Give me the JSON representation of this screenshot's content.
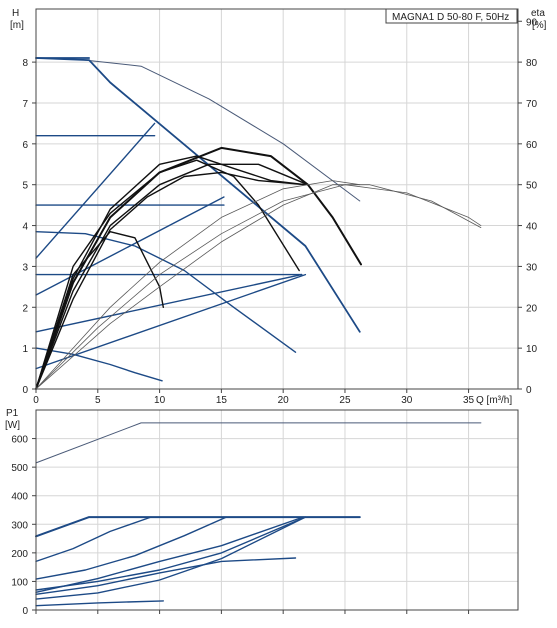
{
  "chart_data": [
    {
      "type": "line",
      "title": "MAGNA1 D 50-80 F, 50Hz",
      "ylabel": "H",
      "yunit": "[m]",
      "y2label": "eta",
      "y2unit": "[%]",
      "xlabel": "Q [m³/h]",
      "xlim": [
        0,
        39
      ],
      "ylim": [
        0,
        9.3
      ],
      "y2lim": [
        0,
        93
      ],
      "xticks": [
        "0",
        "5",
        "10",
        "15",
        "20",
        "25",
        "30",
        "35"
      ],
      "yticks": [
        "0",
        "1",
        "2",
        "3",
        "4",
        "5",
        "6",
        "7",
        "8"
      ],
      "y2ticks": [
        "0",
        "10",
        "20",
        "30",
        "40",
        "50",
        "60",
        "70",
        "80",
        "90"
      ],
      "grid": true,
      "series": [
        {
          "axis": "H",
          "role": "curve-max",
          "x": [
            0,
            2,
            4,
            8.5,
            14,
            20,
            26.2
          ],
          "y": [
            8.1,
            8.1,
            8.05,
            7.9,
            7.1,
            6.0,
            4.6
          ]
        },
        {
          "axis": "H",
          "role": "proportional",
          "x": [
            0,
            4.3,
            6,
            21.8,
            26.2
          ],
          "y": [
            8.1,
            8.05,
            7.5,
            3.5,
            1.4
          ]
        },
        {
          "axis": "H",
          "role": "constant-8",
          "x": [
            0,
            4.3
          ],
          "y": [
            8.1,
            8.1
          ]
        },
        {
          "axis": "H",
          "role": "constant-6.2",
          "x": [
            0,
            9.6
          ],
          "y": [
            6.2,
            6.2
          ]
        },
        {
          "axis": "H",
          "role": "constant-4.5",
          "x": [
            0,
            15.2
          ],
          "y": [
            4.5,
            4.5
          ]
        },
        {
          "axis": "H",
          "role": "constant-2.8",
          "x": [
            0,
            21.5
          ],
          "y": [
            2.8,
            2.8
          ]
        },
        {
          "axis": "H",
          "role": "prop-low",
          "x": [
            0,
            9.6
          ],
          "y": [
            3.2,
            6.5
          ]
        },
        {
          "axis": "H",
          "role": "prop-low",
          "x": [
            0,
            15.2
          ],
          "y": [
            2.3,
            4.7
          ]
        },
        {
          "axis": "H",
          "role": "prop-low",
          "x": [
            0,
            21.5
          ],
          "y": [
            1.4,
            2.8
          ]
        },
        {
          "axis": "H",
          "role": "prop-low",
          "x": [
            0,
            21.8
          ],
          "y": [
            0.5,
            2.8
          ]
        },
        {
          "axis": "H",
          "role": "min-curve",
          "x": [
            0,
            4,
            8,
            12,
            16,
            21
          ],
          "y": [
            3.85,
            3.8,
            3.5,
            2.9,
            2.0,
            0.9
          ]
        },
        {
          "axis": "H",
          "role": "min-curve",
          "x": [
            0,
            3,
            6,
            8,
            10.2
          ],
          "y": [
            1.0,
            0.85,
            0.6,
            0.4,
            0.2
          ]
        },
        {
          "axis": "H",
          "role": "auto",
          "x": [
            0,
            3,
            6,
            8,
            10,
            10.3
          ],
          "y": [
            0,
            2.8,
            3.85,
            3.7,
            2.5,
            2.0
          ]
        },
        {
          "axis": "H",
          "role": "auto",
          "x": [
            0,
            3,
            6,
            10,
            13,
            16,
            18,
            21.3
          ],
          "y": [
            0,
            3.0,
            4.3,
            5.3,
            5.6,
            5.2,
            4.5,
            2.9
          ]
        },
        {
          "axis": "H",
          "role": "auto",
          "x": [
            0,
            3,
            6,
            10,
            13,
            16,
            19,
            21.8
          ],
          "y": [
            0,
            2.7,
            4.4,
            5.5,
            5.7,
            5.4,
            5.1,
            5.0
          ]
        },
        {
          "axis": "H",
          "role": "auto",
          "x": [
            0,
            3,
            6,
            9,
            12,
            15,
            18,
            21.8
          ],
          "y": [
            0,
            2.2,
            3.9,
            4.7,
            5.2,
            5.3,
            5.1,
            5.0
          ]
        },
        {
          "axis": "H",
          "role": "auto",
          "x": [
            0,
            3,
            6,
            10,
            14,
            18,
            22
          ],
          "y": [
            0,
            2.4,
            4.0,
            5.0,
            5.5,
            5.5,
            5.0
          ]
        },
        {
          "axis": "H",
          "role": "auto",
          "x": [
            0,
            3,
            6,
            10,
            15,
            19,
            22,
            24,
            26.3
          ],
          "y": [
            0,
            2.6,
            4.2,
            5.3,
            5.9,
            5.7,
            5.0,
            4.2,
            3.05
          ]
        },
        {
          "axis": "eta",
          "role": "efficiency",
          "x": [
            0,
            3,
            6,
            10,
            15,
            20,
            24,
            26.2
          ],
          "y": [
            0,
            10,
            20,
            31,
            42,
            49,
            51,
            50
          ]
        },
        {
          "axis": "eta",
          "role": "efficiency",
          "x": [
            0,
            6,
            10,
            15,
            20,
            24,
            27,
            32,
            36
          ],
          "y": [
            0,
            16,
            25,
            36,
            45,
            50,
            50,
            46,
            39.5
          ]
        },
        {
          "axis": "eta",
          "role": "efficiency",
          "x": [
            0,
            5,
            10,
            15,
            20,
            25,
            30,
            35,
            36
          ],
          "y": [
            0,
            15,
            28,
            38,
            46,
            50,
            48,
            42,
            40
          ]
        }
      ]
    },
    {
      "type": "line",
      "ylabel": "P1",
      "yunit": "[W]",
      "xlim": [
        0,
        39
      ],
      "ylim": [
        0,
        700
      ],
      "yticks": [
        "0",
        "100",
        "200",
        "300",
        "400",
        "500",
        "600"
      ],
      "grid": true,
      "series": [
        {
          "role": "max",
          "x": [
            0,
            8.5,
            36
          ],
          "y": [
            515,
            655,
            655
          ]
        },
        {
          "role": "limit",
          "x": [
            0,
            4.3,
            26.2
          ],
          "y": [
            258,
            325,
            325
          ]
        },
        {
          "role": "curve",
          "x": [
            0,
            3,
            6,
            9.3
          ],
          "y": [
            170,
            215,
            275,
            325
          ]
        },
        {
          "role": "curve",
          "x": [
            0,
            4,
            8,
            12,
            15.4
          ],
          "y": [
            108,
            140,
            190,
            260,
            325
          ]
        },
        {
          "role": "curve",
          "x": [
            0,
            5,
            10,
            15,
            21.6
          ],
          "y": [
            62,
            110,
            170,
            225,
            325
          ]
        },
        {
          "role": "curve",
          "x": [
            0,
            5,
            10,
            15,
            21.8
          ],
          "y": [
            38,
            60,
            105,
            180,
            325
          ]
        },
        {
          "role": "curve",
          "x": [
            0,
            5,
            10,
            15,
            21.8
          ],
          "y": [
            70,
            100,
            140,
            200,
            325
          ]
        },
        {
          "role": "min",
          "x": [
            0,
            5,
            10,
            15,
            21
          ],
          "y": [
            55,
            85,
            130,
            170,
            182
          ]
        },
        {
          "role": "min",
          "x": [
            0,
            5,
            10.3
          ],
          "y": [
            15,
            25,
            32
          ]
        }
      ]
    }
  ]
}
